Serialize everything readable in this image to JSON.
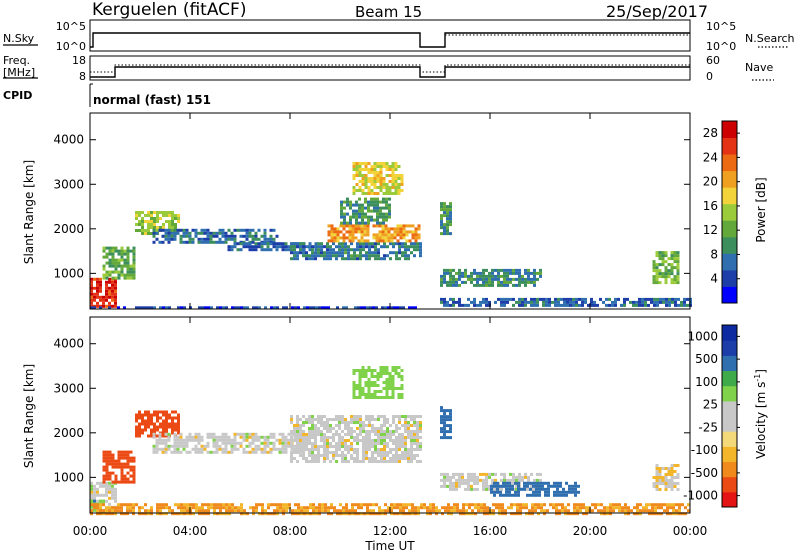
{
  "header": {
    "station": "Kerguelen (fitACF)",
    "beam": "Beam 15",
    "date": "25/Sep/2017"
  },
  "noise_panel": {
    "left_label": "N.Sky",
    "right_label": "N.Search",
    "left_ticks": [
      "10^5",
      "10^0"
    ],
    "right_ticks": [
      "10^5",
      "10^0"
    ]
  },
  "freq_panel": {
    "left_label_1": "Freq.",
    "left_label_2": "[MHz]",
    "right_label": "Nave",
    "left_ticks": [
      "18",
      "8"
    ],
    "right_ticks": [
      "60",
      "0"
    ]
  },
  "cpid_panel": {
    "label": "CPID",
    "value": "normal (fast) 151"
  },
  "colors": {
    "power": [
      "#0000ff",
      "#1d3ea8",
      "#2f6fb0",
      "#3c8f5c",
      "#63a83a",
      "#9bcb3b",
      "#f2d43a",
      "#f0a020",
      "#ec6a12",
      "#e43214",
      "#cc0000"
    ],
    "velocity": [
      "#e41414",
      "#ec4a14",
      "#f08a1c",
      "#f3b62a",
      "#f3d97a",
      "#c8c8c8",
      "#c8c8c8",
      "#7fd24a",
      "#3faa4a",
      "#2f6fb0",
      "#1d3ea8",
      "#0d2aa0"
    ]
  },
  "chart_data": [
    {
      "type": "heatmap",
      "title": "Power",
      "xlabel": "Time UT",
      "ylabel": "Slant Range [km]",
      "x_ticks": [
        "00:00",
        "04:00",
        "08:00",
        "12:00",
        "16:00",
        "20:00",
        "00:00"
      ],
      "y_ticks": [
        "1000",
        "2000",
        "3000",
        "4000"
      ],
      "ylim": [
        200,
        4600
      ],
      "colorbar": {
        "label": "Power [dB]",
        "ticks": [
          "4",
          "8",
          "12",
          "16",
          "20",
          "24",
          "28"
        ],
        "range": [
          0,
          30
        ]
      },
      "regions": [
        {
          "t0": 0.0,
          "t1": 1.0,
          "r0": 250,
          "r1": 900,
          "level": 27
        },
        {
          "t0": 0.5,
          "t1": 1.8,
          "r0": 900,
          "r1": 1600,
          "level": 12
        },
        {
          "t0": 1.8,
          "t1": 3.6,
          "r0": 1900,
          "r1": 2400,
          "level": 15
        },
        {
          "t0": 2.5,
          "t1": 7.5,
          "r0": 1700,
          "r1": 2000,
          "level": 7
        },
        {
          "t0": 5.5,
          "t1": 9.0,
          "r0": 1550,
          "r1": 1700,
          "level": 6
        },
        {
          "t0": 8.0,
          "t1": 13.2,
          "r0": 1350,
          "r1": 1700,
          "level": 8
        },
        {
          "t0": 9.5,
          "t1": 13.2,
          "r0": 1700,
          "r1": 2100,
          "level": 21
        },
        {
          "t0": 10.0,
          "t1": 12.0,
          "r0": 2100,
          "r1": 2700,
          "level": 10
        },
        {
          "t0": 10.5,
          "t1": 12.5,
          "r0": 2800,
          "r1": 3500,
          "level": 17
        },
        {
          "t0": 14.0,
          "t1": 14.4,
          "r0": 1900,
          "r1": 2600,
          "level": 10
        },
        {
          "t0": 14.0,
          "t1": 18.0,
          "r0": 700,
          "r1": 1100,
          "level": 9
        },
        {
          "t0": 22.5,
          "t1": 23.5,
          "r0": 800,
          "r1": 1500,
          "level": 13
        },
        {
          "t0": 14.0,
          "t1": 24.0,
          "r0": 250,
          "r1": 450,
          "level": 6
        },
        {
          "t0": 0.0,
          "t1": 13.2,
          "r0": 200,
          "r1": 260,
          "level": 4
        }
      ]
    },
    {
      "type": "heatmap",
      "title": "Velocity",
      "xlabel": "Time UT",
      "ylabel": "Slant Range [km]",
      "x_ticks": [
        "00:00",
        "04:00",
        "08:00",
        "12:00",
        "16:00",
        "20:00",
        "00:00"
      ],
      "y_ticks": [
        "1000",
        "2000",
        "3000",
        "4000"
      ],
      "ylim": [
        200,
        4600
      ],
      "colorbar": {
        "label": "Velocity [m s^-1]",
        "ticks": [
          "1000",
          "500",
          "100",
          "25",
          "-25",
          "-100",
          "-500",
          "-1000"
        ],
        "range": [
          -1000,
          1000
        ]
      },
      "regions": [
        {
          "t0": 0.0,
          "t1": 1.0,
          "r0": 250,
          "r1": 900,
          "level": 0
        },
        {
          "t0": 0.0,
          "t1": 0.6,
          "r0": 200,
          "r1": 500,
          "level": 80
        },
        {
          "t0": 0.5,
          "t1": 1.8,
          "r0": 900,
          "r1": 1600,
          "level": -150
        },
        {
          "t0": 1.8,
          "t1": 3.6,
          "r0": 1900,
          "r1": 2500,
          "level": -400
        },
        {
          "t0": 2.5,
          "t1": 8.5,
          "r0": 1550,
          "r1": 2000,
          "level": 0
        },
        {
          "t0": 8.0,
          "t1": 13.2,
          "r0": 1350,
          "r1": 2400,
          "level": 0
        },
        {
          "t0": 10.5,
          "t1": 12.5,
          "r0": 2800,
          "r1": 3500,
          "level": 60
        },
        {
          "t0": 14.0,
          "t1": 14.4,
          "r0": 1900,
          "r1": 2600,
          "level": 150
        },
        {
          "t0": 14.0,
          "t1": 18.0,
          "r0": 700,
          "r1": 1100,
          "level": 0
        },
        {
          "t0": 16.0,
          "t1": 19.5,
          "r0": 600,
          "r1": 900,
          "level": 150
        },
        {
          "t0": 22.5,
          "t1": 23.5,
          "r0": 700,
          "r1": 1300,
          "level": -20
        },
        {
          "t0": 0.0,
          "t1": 24.0,
          "r0": 200,
          "r1": 420,
          "level": -60
        }
      ]
    }
  ]
}
